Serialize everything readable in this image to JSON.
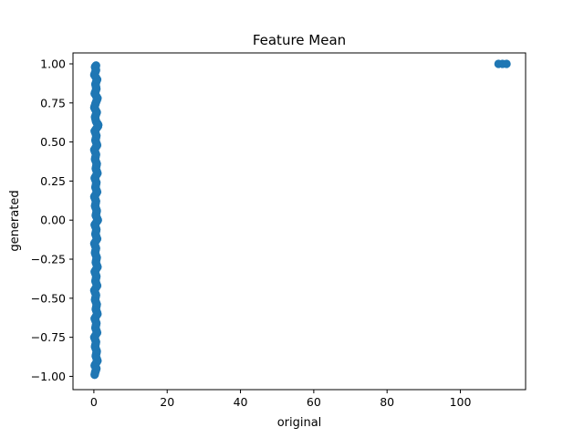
{
  "chart_data": {
    "type": "scatter",
    "title": "Feature Mean",
    "xlabel": "original",
    "ylabel": "generated",
    "xlim": [
      -5.7,
      117.8
    ],
    "ylim": [
      -1.085,
      1.07
    ],
    "xticks": [
      0,
      20,
      40,
      60,
      80,
      100
    ],
    "yticks": [
      1.0,
      0.75,
      0.5,
      0.25,
      0.0,
      -0.25,
      -0.5,
      -0.75,
      -1.0
    ],
    "xtick_labels": [
      "0",
      "20",
      "40",
      "60",
      "80",
      "100"
    ],
    "ytick_labels": [
      "1.00",
      "0.75",
      "0.50",
      "0.25",
      "0.00",
      "−0.25",
      "−0.50",
      "−0.75",
      "−1.00"
    ],
    "grid": false,
    "legend": false,
    "marker_color": "#1f77b4",
    "series": [
      {
        "points": [
          [
            0.3,
            0.98
          ],
          [
            0.6,
            0.96
          ],
          [
            0.1,
            0.93
          ],
          [
            0.9,
            0.9
          ],
          [
            0.4,
            0.87
          ],
          [
            0.7,
            0.84
          ],
          [
            0.2,
            0.81
          ],
          [
            1.0,
            0.78
          ],
          [
            0.5,
            0.75
          ],
          [
            0.1,
            0.72
          ],
          [
            0.8,
            0.69
          ],
          [
            0.3,
            0.66
          ],
          [
            0.6,
            0.63
          ],
          [
            1.1,
            0.6
          ],
          [
            0.2,
            0.57
          ],
          [
            0.7,
            0.54
          ],
          [
            0.4,
            0.51
          ],
          [
            0.9,
            0.48
          ],
          [
            0.1,
            0.45
          ],
          [
            0.6,
            0.42
          ],
          [
            0.3,
            0.39
          ],
          [
            0.8,
            0.36
          ],
          [
            0.5,
            0.33
          ],
          [
            1.0,
            0.3
          ],
          [
            0.2,
            0.27
          ],
          [
            0.7,
            0.24
          ],
          [
            0.4,
            0.21
          ],
          [
            0.9,
            0.18
          ],
          [
            0.1,
            0.15
          ],
          [
            0.6,
            0.12
          ],
          [
            0.3,
            0.09
          ],
          [
            0.8,
            0.06
          ],
          [
            0.5,
            0.03
          ],
          [
            1.1,
            0.0
          ],
          [
            0.2,
            -0.03
          ],
          [
            0.7,
            -0.06
          ],
          [
            0.4,
            -0.09
          ],
          [
            0.9,
            -0.12
          ],
          [
            0.1,
            -0.15
          ],
          [
            0.6,
            -0.18
          ],
          [
            0.3,
            -0.21
          ],
          [
            0.8,
            -0.24
          ],
          [
            0.5,
            -0.27
          ],
          [
            1.0,
            -0.3
          ],
          [
            0.2,
            -0.33
          ],
          [
            0.7,
            -0.36
          ],
          [
            0.4,
            -0.39
          ],
          [
            0.9,
            -0.42
          ],
          [
            0.1,
            -0.45
          ],
          [
            0.6,
            -0.48
          ],
          [
            0.3,
            -0.51
          ],
          [
            0.8,
            -0.54
          ],
          [
            0.5,
            -0.57
          ],
          [
            1.0,
            -0.6
          ],
          [
            0.2,
            -0.63
          ],
          [
            0.7,
            -0.66
          ],
          [
            0.4,
            -0.69
          ],
          [
            0.9,
            -0.72
          ],
          [
            0.1,
            -0.75
          ],
          [
            0.6,
            -0.78
          ],
          [
            0.3,
            -0.81
          ],
          [
            0.8,
            -0.84
          ],
          [
            0.5,
            -0.87
          ],
          [
            1.0,
            -0.9
          ],
          [
            0.2,
            -0.93
          ],
          [
            0.7,
            -0.95
          ],
          [
            0.4,
            -0.97
          ],
          [
            0.6,
            0.99
          ],
          [
            0.2,
            -0.99
          ],
          [
            1.2,
            0.61
          ],
          [
            110.4,
            1.0
          ],
          [
            111.5,
            1.0
          ],
          [
            112.6,
            1.0
          ]
        ]
      }
    ]
  }
}
